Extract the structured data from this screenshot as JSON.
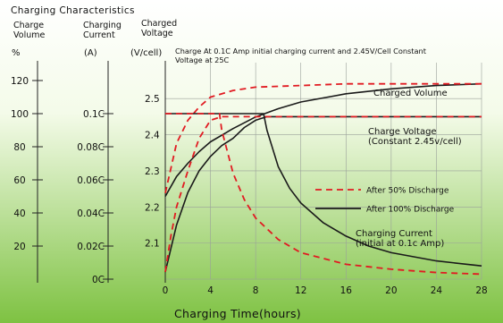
{
  "chart_data": {
    "type": "line",
    "title": "Charging Characteristics",
    "colors": {
      "bg_top": "#ffffff",
      "bg_bottom": "#7ec242",
      "solid": "#1a1a1a",
      "dashed": "#e11b22"
    },
    "axis_headers": {
      "volume": "Charge\nVolume",
      "current": "Charging\nCurrent",
      "voltage": "Charged\nVoltage"
    },
    "axis_units": {
      "volume": "%",
      "current": "(A)",
      "voltage": "(V/cell)"
    },
    "y_volume": {
      "ticks": [
        "120",
        "100",
        "80",
        "60",
        "40",
        "20"
      ],
      "range": [
        0,
        120
      ]
    },
    "y_current": {
      "ticks": [
        "0.1C",
        "0.08C",
        "0.06C",
        "0.04C",
        "0.02C",
        "0C"
      ],
      "range": [
        0,
        0.12
      ]
    },
    "y_voltage": {
      "ticks": [
        "2.5",
        "2.4",
        "2.3",
        "2.2",
        "2.1"
      ],
      "range": [
        2.0,
        2.55
      ]
    },
    "x": {
      "label": "Charging Time(hours)",
      "ticks": [
        "0",
        "4",
        "8",
        "12",
        "16",
        "20",
        "24",
        "28"
      ],
      "range": [
        0,
        28
      ]
    },
    "note": "Charge At 0.1C Amp initial charging current and 2.45V/Cell Constant Voltage at 25C",
    "annotations": {
      "charged_volume": "Charged Volume",
      "charge_voltage": "Charge Voltage\n(Constant 2.45v/cell)",
      "charging_current": "Charging Current\n(initial at 0.1c Amp)"
    },
    "legend": [
      {
        "label": "After 50% Discharge",
        "style": "dashed"
      },
      {
        "label": "After 100% Discharge",
        "style": "solid"
      }
    ],
    "series": [
      {
        "axis": "volume",
        "style": "solid",
        "points": [
          [
            0,
            50
          ],
          [
            1,
            62
          ],
          [
            2,
            70
          ],
          [
            3,
            77
          ],
          [
            4,
            83
          ],
          [
            6,
            91
          ],
          [
            8,
            98
          ],
          [
            10,
            103
          ],
          [
            12,
            107
          ],
          [
            16,
            112
          ],
          [
            20,
            115
          ],
          [
            24,
            117
          ],
          [
            28,
            118
          ]
        ]
      },
      {
        "axis": "volume",
        "style": "dashed",
        "points": [
          [
            0,
            52
          ],
          [
            1,
            82
          ],
          [
            2,
            96
          ],
          [
            3,
            104
          ],
          [
            4,
            110
          ],
          [
            6,
            114
          ],
          [
            8,
            116
          ],
          [
            12,
            117
          ],
          [
            16,
            118
          ],
          [
            20,
            118
          ],
          [
            28,
            118
          ]
        ]
      },
      {
        "axis": "voltage",
        "style": "solid",
        "points": [
          [
            0,
            2.02
          ],
          [
            1,
            2.15
          ],
          [
            2,
            2.24
          ],
          [
            3,
            2.3
          ],
          [
            4,
            2.34
          ],
          [
            5,
            2.37
          ],
          [
            6,
            2.39
          ],
          [
            7,
            2.42
          ],
          [
            8,
            2.44
          ],
          [
            9,
            2.45
          ],
          [
            12,
            2.45
          ],
          [
            16,
            2.45
          ],
          [
            20,
            2.45
          ],
          [
            28,
            2.45
          ]
        ]
      },
      {
        "axis": "voltage",
        "style": "dashed",
        "points": [
          [
            0,
            2.02
          ],
          [
            0.5,
            2.12
          ],
          [
            1,
            2.2
          ],
          [
            2,
            2.3
          ],
          [
            3,
            2.39
          ],
          [
            4,
            2.44
          ],
          [
            5,
            2.45
          ],
          [
            8,
            2.45
          ],
          [
            12,
            2.45
          ],
          [
            28,
            2.45
          ]
        ]
      },
      {
        "axis": "current",
        "style": "solid",
        "points": [
          [
            0,
            0.1
          ],
          [
            8.7,
            0.1
          ],
          [
            9,
            0.09
          ],
          [
            10,
            0.068
          ],
          [
            11,
            0.055
          ],
          [
            12,
            0.046
          ],
          [
            14,
            0.034
          ],
          [
            16,
            0.026
          ],
          [
            18,
            0.02
          ],
          [
            20,
            0.016
          ],
          [
            24,
            0.011
          ],
          [
            28,
            0.008
          ]
        ]
      },
      {
        "axis": "current",
        "style": "dashed",
        "points": [
          [
            0,
            0.1
          ],
          [
            4.8,
            0.1
          ],
          [
            5,
            0.09
          ],
          [
            6,
            0.064
          ],
          [
            7,
            0.048
          ],
          [
            8,
            0.037
          ],
          [
            10,
            0.024
          ],
          [
            12,
            0.016
          ],
          [
            16,
            0.009
          ],
          [
            20,
            0.006
          ],
          [
            24,
            0.004
          ],
          [
            28,
            0.003
          ]
        ]
      }
    ]
  }
}
